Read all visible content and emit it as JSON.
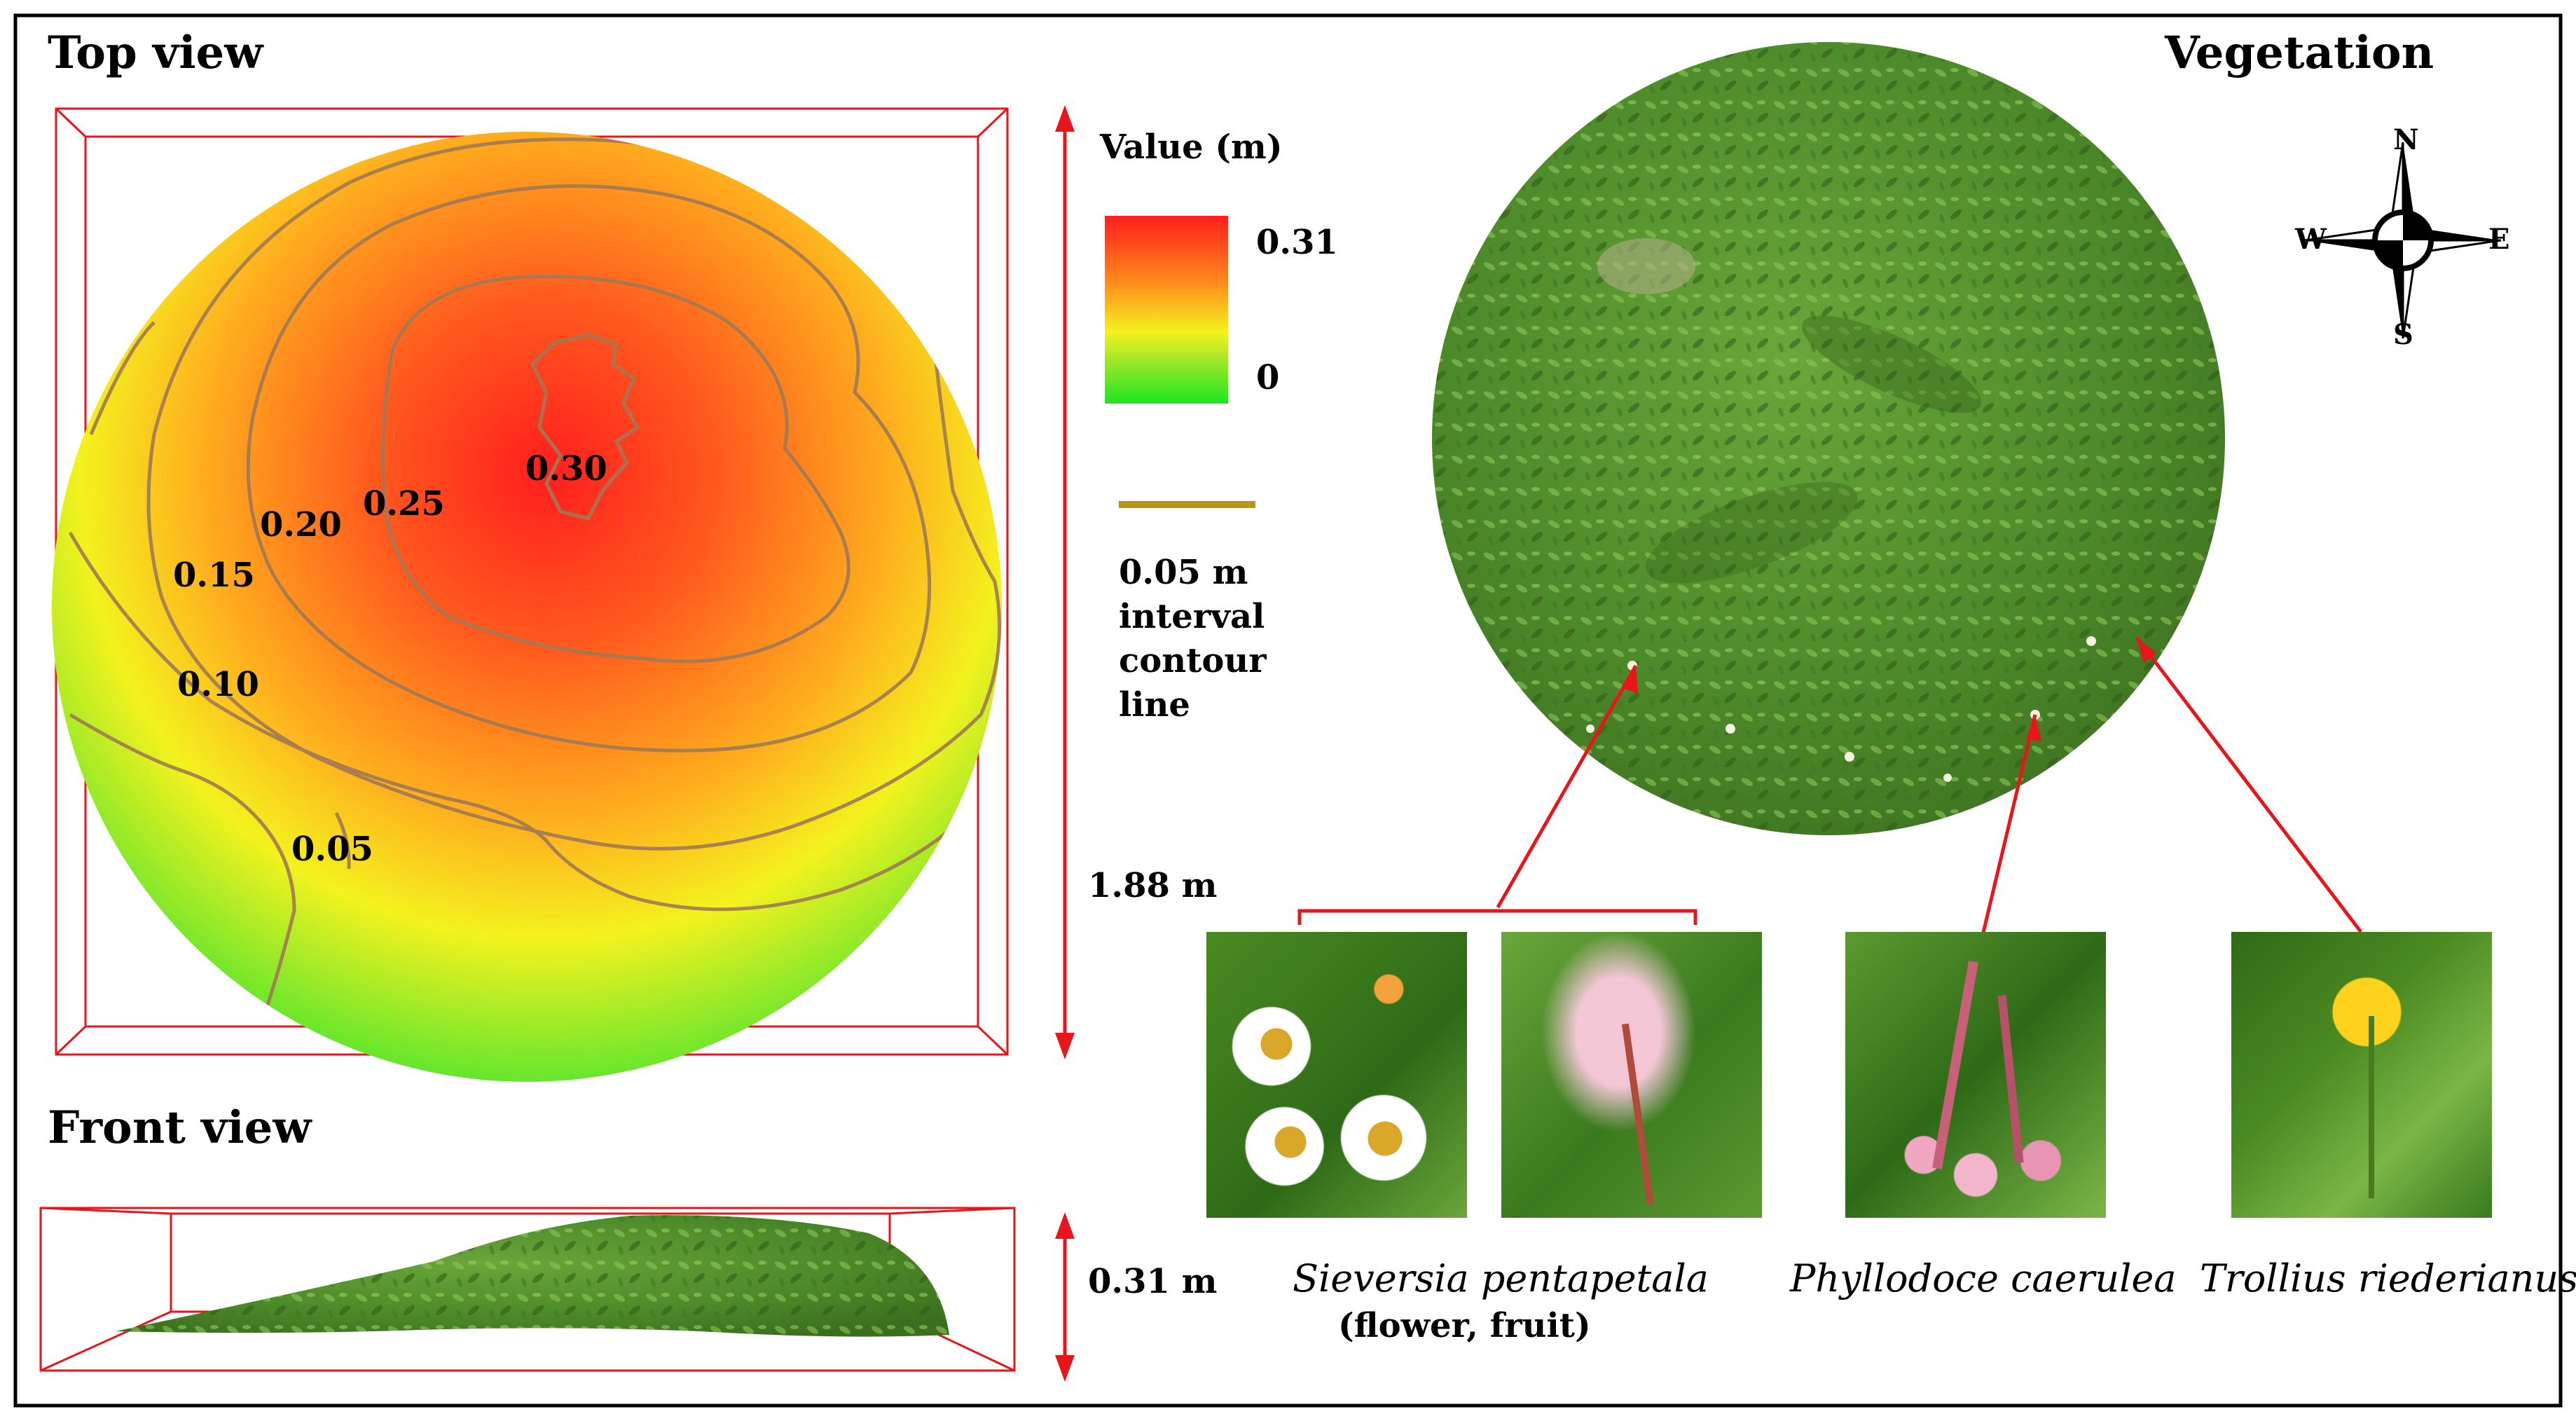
{
  "panels": {
    "top_view": "Top view",
    "front_view": "Front view",
    "vegetation": "Vegetation"
  },
  "legend": {
    "title": "Value (m)",
    "max": "0.31",
    "min": "0",
    "gradient_colors": [
      "#ff2a1a",
      "#ffd700",
      "#7de32a",
      "#2ee52e"
    ],
    "contour_color": "#b8931e",
    "contour_desc": [
      "0.05 m",
      "interval",
      "contour",
      "line"
    ]
  },
  "dimensions": {
    "width": "1.88 m",
    "height": "0.31 m"
  },
  "contours": {
    "labels": [
      "0.30",
      "0.25",
      "0.20",
      "0.15",
      "0.10",
      "0.05"
    ]
  },
  "compass": {
    "n": "N",
    "s": "S",
    "w": "W",
    "e": "E"
  },
  "species": {
    "sieversia": "Sieversia pentapetala",
    "sieversia_note": "(flower, fruit)",
    "phyllodoce": "Phyllodoce caerulea",
    "trollius": "Trollius riederianus"
  },
  "colors": {
    "frame": "#000000",
    "accent": "#e8151b",
    "vegetation_green": "#4f8a2a"
  }
}
